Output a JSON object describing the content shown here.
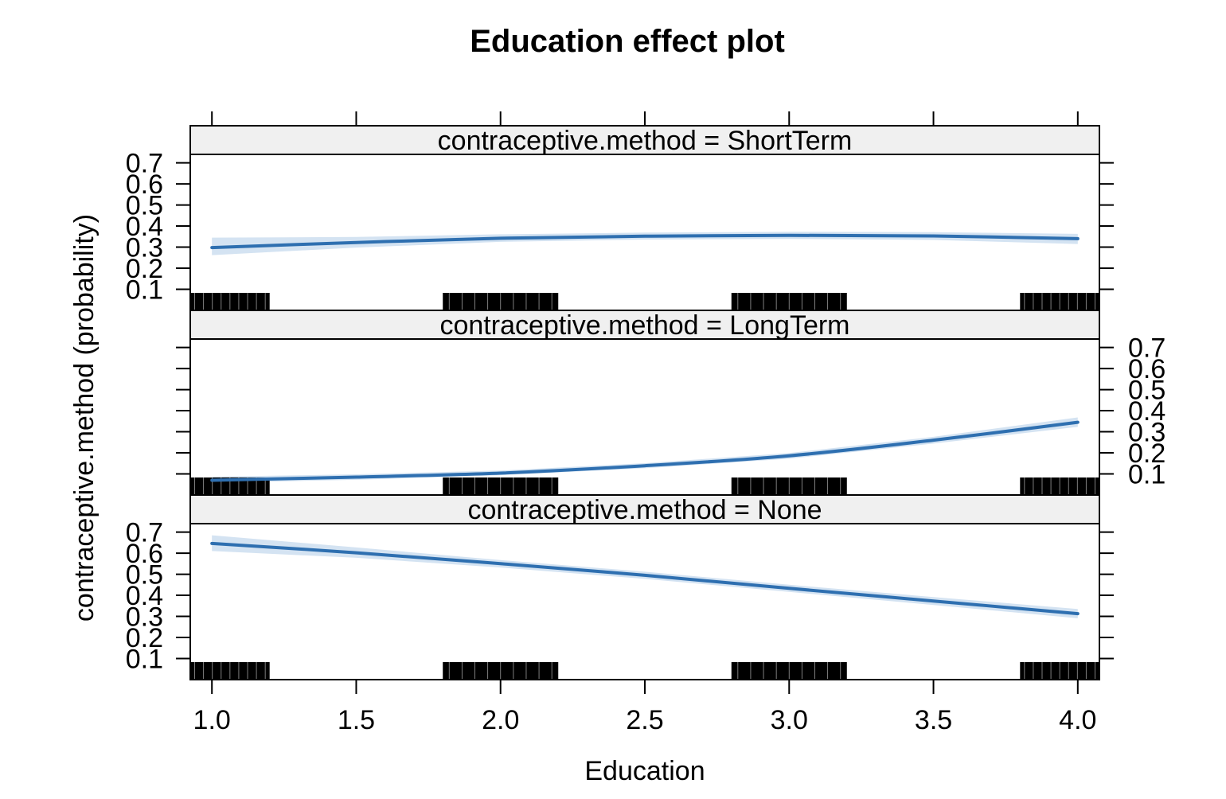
{
  "chart_data": {
    "type": "line",
    "title": "Education effect plot",
    "xlabel": "Education",
    "ylabel": "contraceptive.method (probability)",
    "xlim": [
      0.925,
      4.075
    ],
    "ylim": [
      0.0,
      0.74
    ],
    "x_ticks": [
      "1.0",
      "1.5",
      "2.0",
      "2.5",
      "3.0",
      "3.5",
      "4.0"
    ],
    "y_ticks": [
      "0.1",
      "0.2",
      "0.3",
      "0.4",
      "0.5",
      "0.6",
      "0.7"
    ],
    "grid": false,
    "legend": "none",
    "line_color": "#2E6FB0",
    "band_color": "#D4E3F2",
    "panels": [
      {
        "strip": "contraceptive.method = ShortTerm",
        "x": [
          1.0,
          1.5,
          2.0,
          2.5,
          3.0,
          3.5,
          4.0
        ],
        "y": [
          0.298,
          0.322,
          0.342,
          0.352,
          0.356,
          0.353,
          0.34
        ],
        "lower": [
          0.262,
          0.298,
          0.325,
          0.336,
          0.339,
          0.334,
          0.315
        ],
        "upper": [
          0.345,
          0.348,
          0.361,
          0.369,
          0.373,
          0.371,
          0.363
        ]
      },
      {
        "strip": "contraceptive.method = LongTerm",
        "x": [
          1.0,
          1.5,
          2.0,
          2.5,
          3.0,
          3.5,
          4.0
        ],
        "y": [
          0.07,
          0.085,
          0.104,
          0.139,
          0.186,
          0.26,
          0.345
        ],
        "lower": [
          0.058,
          0.072,
          0.094,
          0.127,
          0.172,
          0.244,
          0.323
        ],
        "upper": [
          0.087,
          0.098,
          0.116,
          0.151,
          0.199,
          0.276,
          0.368
        ]
      },
      {
        "strip": "contraceptive.method = None",
        "x": [
          1.0,
          1.5,
          2.0,
          2.5,
          3.0,
          3.5,
          4.0
        ],
        "y": [
          0.646,
          0.602,
          0.55,
          0.495,
          0.433,
          0.373,
          0.313
        ],
        "lower": [
          0.61,
          0.578,
          0.532,
          0.478,
          0.416,
          0.354,
          0.291
        ],
        "upper": [
          0.685,
          0.627,
          0.567,
          0.512,
          0.45,
          0.392,
          0.335
        ]
      }
    ],
    "rug": [
      {
        "from": 0.925,
        "to": 1.2
      },
      {
        "from": 1.8,
        "to": 2.2
      },
      {
        "from": 2.8,
        "to": 3.2
      },
      {
        "from": 3.8,
        "to": 4.075
      }
    ]
  }
}
